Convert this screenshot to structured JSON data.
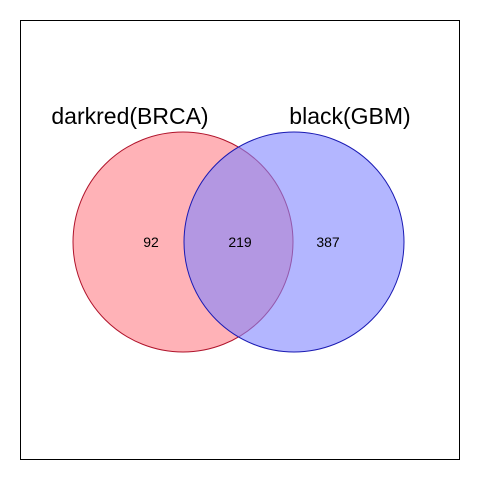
{
  "chart_data": {
    "type": "venn",
    "sets": [
      {
        "label": "darkred(BRCA)",
        "fill": "#ff7f87",
        "stroke": "#b0132b",
        "fill_opacity": 0.6
      },
      {
        "label": "black(GBM)",
        "fill": "#8085ff",
        "stroke": "#1a1ab3",
        "fill_opacity": 0.6
      }
    ],
    "counts": {
      "only_a": "92",
      "intersection": "219",
      "only_b": "387"
    }
  },
  "colors": {
    "frame": "#000000",
    "background": "#ffffff",
    "overlap": "#a87bc8"
  }
}
